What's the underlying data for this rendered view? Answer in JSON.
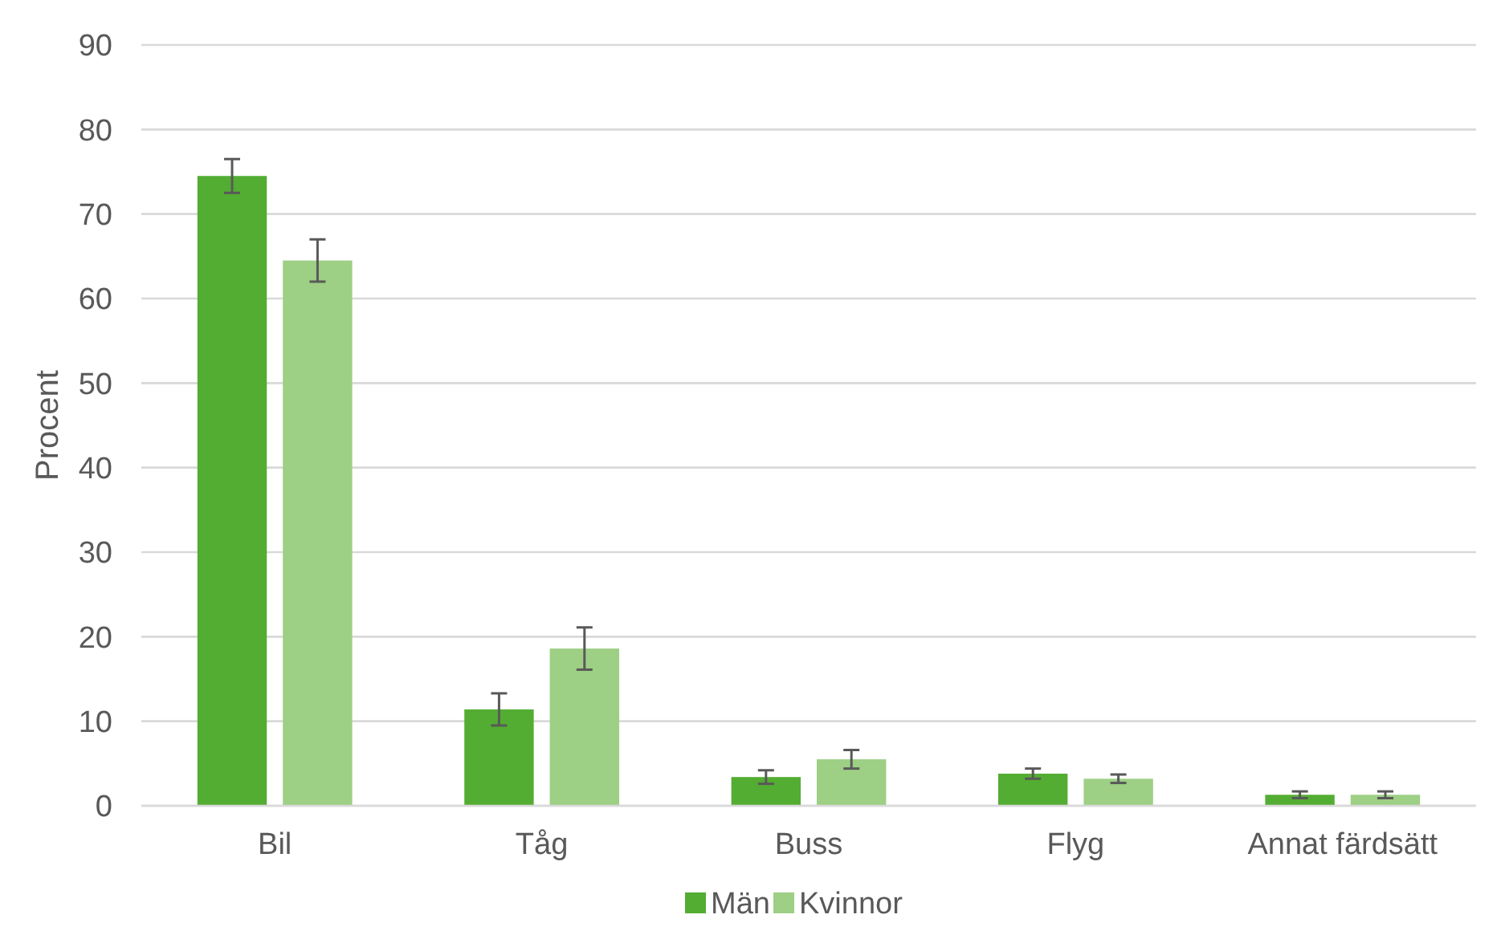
{
  "chart_data": {
    "type": "bar",
    "ylabel": "Procent",
    "categories": [
      "Bil",
      "Tåg",
      "Buss",
      "Flyg",
      "Annat färdsätt"
    ],
    "series": [
      {
        "name": "Män",
        "color": "#53ad32",
        "values": [
          74.5,
          11.4,
          3.4,
          3.8,
          1.3
        ],
        "errors": [
          2,
          1.9,
          0.8,
          0.6,
          0.4
        ]
      },
      {
        "name": "Kvinnor",
        "color": "#9dcf85",
        "values": [
          64.5,
          18.6,
          5.5,
          3.2,
          1.3
        ],
        "errors": [
          2.5,
          2.5,
          1.1,
          0.5,
          0.4
        ]
      }
    ],
    "ylim": [
      0,
      90
    ],
    "yticks": [
      0,
      10,
      20,
      30,
      40,
      50,
      60,
      70,
      80,
      90
    ],
    "grid": "y",
    "legend": "bottom"
  }
}
